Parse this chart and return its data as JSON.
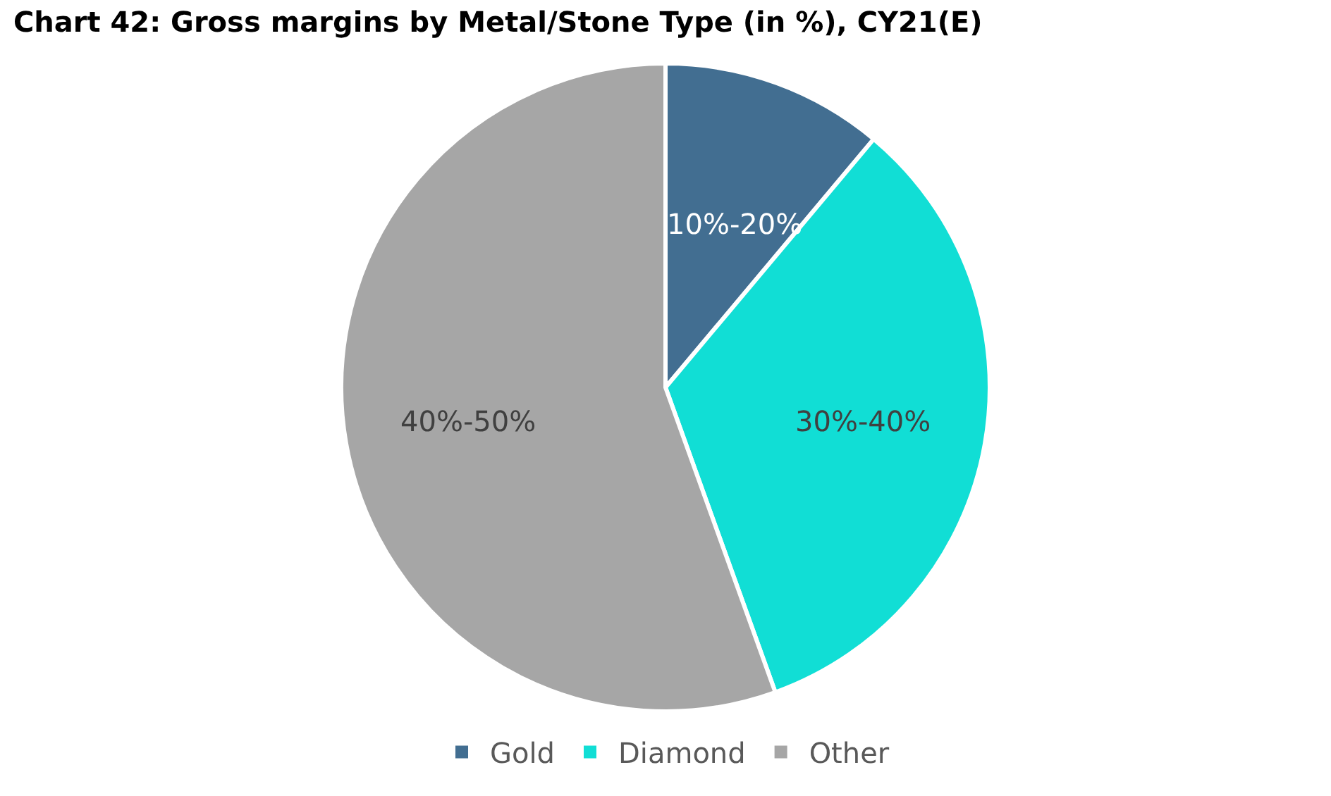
{
  "chart_data": {
    "type": "pie",
    "title": "Chart 42: Gross margins by Metal/Stone Type (in %), CY21(E)",
    "categories": [
      "Gold",
      "Diamond",
      "Other"
    ],
    "values": [
      11.1,
      33.4,
      55.5
    ],
    "colors": [
      "#426e91",
      "#11ded5",
      "#a6a6a6"
    ],
    "annotations": [
      "10%-20%",
      "30%-40%",
      "40%-50%"
    ],
    "legend": "bottom"
  }
}
